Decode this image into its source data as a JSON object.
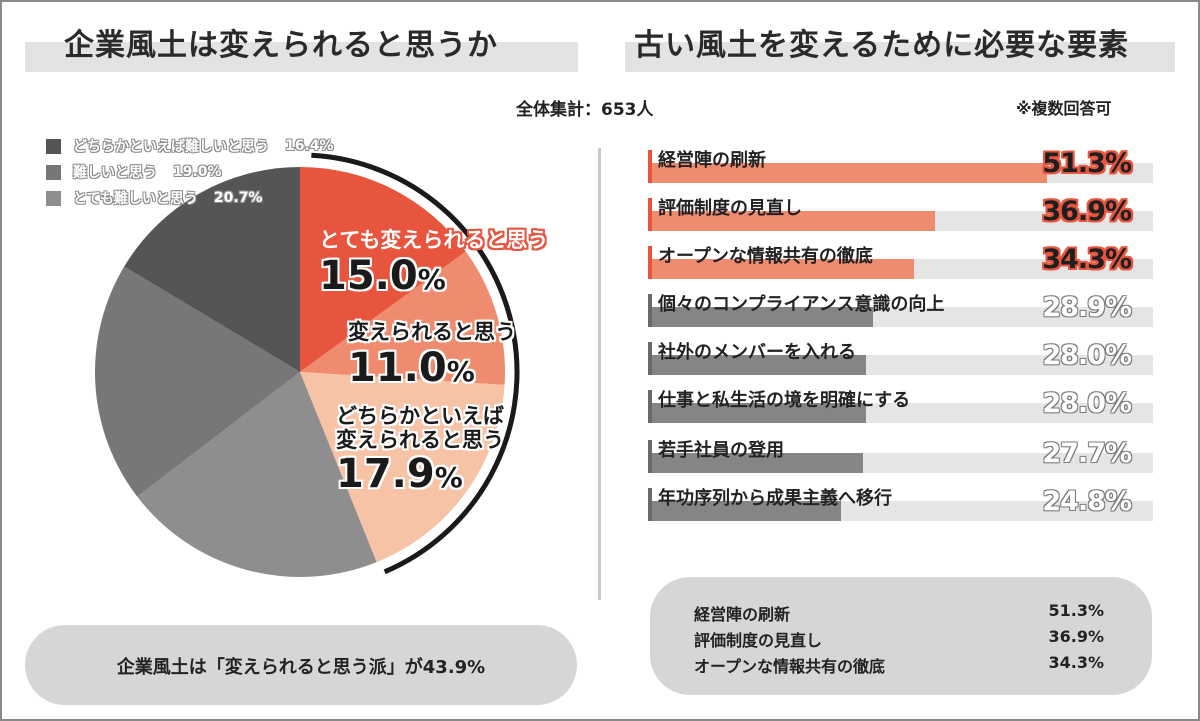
{
  "left": {
    "title": "企業風土は変えられると思うか",
    "summary": "企業風土は「変えられると思う派」が43.9%"
  },
  "right": {
    "title": "古い風土を変えるために必要な要素",
    "note": "※複数回答可"
  },
  "sample": "全体集計：653人",
  "colors": {
    "accent": "#e8553e",
    "accent_mid": "#ef8b6f",
    "accent_light": "#f6c3a6",
    "gray_dark": "#555555",
    "gray_mid": "#777777",
    "gray_light": "#8e8e8e",
    "bar_gray": "#858585",
    "track": "#e5e5e5"
  },
  "chart_data": [
    {
      "type": "pie",
      "title": "企業風土は変えられると思うか",
      "start": "12 o'clock, clockwise",
      "slices": [
        {
          "label": "とても変えられると思う",
          "value": 15.0,
          "value_text": "15.0",
          "unit": "%",
          "color": "#e8553e"
        },
        {
          "label": "変えられると思う",
          "value": 11.0,
          "value_text": "11.0",
          "unit": "%",
          "color": "#ef8b6f"
        },
        {
          "label": "どちらかといえば変えられると思う",
          "label_lines": [
            "どちらかといえば",
            "変えられると思う"
          ],
          "value": 17.9,
          "value_text": "17.9",
          "unit": "%",
          "color": "#f6c3a6"
        },
        {
          "label": "とても難しいと思う",
          "value": 20.7,
          "value_text": "20.7%",
          "color": "#8e8e8e"
        },
        {
          "label": "難しいと思う",
          "value": 19.0,
          "value_text": "19.0%",
          "color": "#777777"
        },
        {
          "label": "どちらかといえば難しいと思う",
          "value": 16.4,
          "value_text": "16.4%",
          "color": "#555555"
        }
      ],
      "legend": [
        {
          "label": "どちらかといえば難しいと思う",
          "value": "16.4%",
          "color": "#555555"
        },
        {
          "label": "難しいと思う",
          "value": "19.0%",
          "color": "#777777"
        },
        {
          "label": "とても難しいと思う",
          "value": "20.7%",
          "color": "#8e8e8e"
        }
      ],
      "legend_placement": "top-left"
    },
    {
      "type": "bar",
      "orientation": "horizontal",
      "title": "古い風土を変えるために必要な要素",
      "xlim": [
        0,
        65
      ],
      "items": [
        {
          "label": "経営陣の刷新",
          "value": 51.3,
          "value_text": "51.3%",
          "highlight": true
        },
        {
          "label": "評価制度の見直し",
          "value": 36.9,
          "value_text": "36.9%",
          "highlight": true
        },
        {
          "label": "オープンな情報共有の徹底",
          "value": 34.3,
          "value_text": "34.3%",
          "highlight": true
        },
        {
          "label": "個々のコンプライアンス意識の向上",
          "value": 28.9,
          "value_text": "28.9%",
          "highlight": false
        },
        {
          "label": "社外のメンバーを入れる",
          "value": 28.0,
          "value_text": "28.0%",
          "highlight": false
        },
        {
          "label": "仕事と私生活の境を明確にする",
          "value": 28.0,
          "value_text": "28.0%",
          "highlight": false
        },
        {
          "label": "若手社員の登用",
          "value": 27.7,
          "value_text": "27.7%",
          "highlight": false
        },
        {
          "label": "年功序列から成果主義へ移行",
          "value": 24.8,
          "value_text": "24.8%",
          "highlight": false
        }
      ],
      "top3": [
        {
          "label": "経営陣の刷新",
          "value": "51.3%"
        },
        {
          "label": "評価制度の見直し",
          "value": "36.9%"
        },
        {
          "label": "オープンな情報共有の徹底",
          "value": "34.3%"
        }
      ]
    }
  ]
}
